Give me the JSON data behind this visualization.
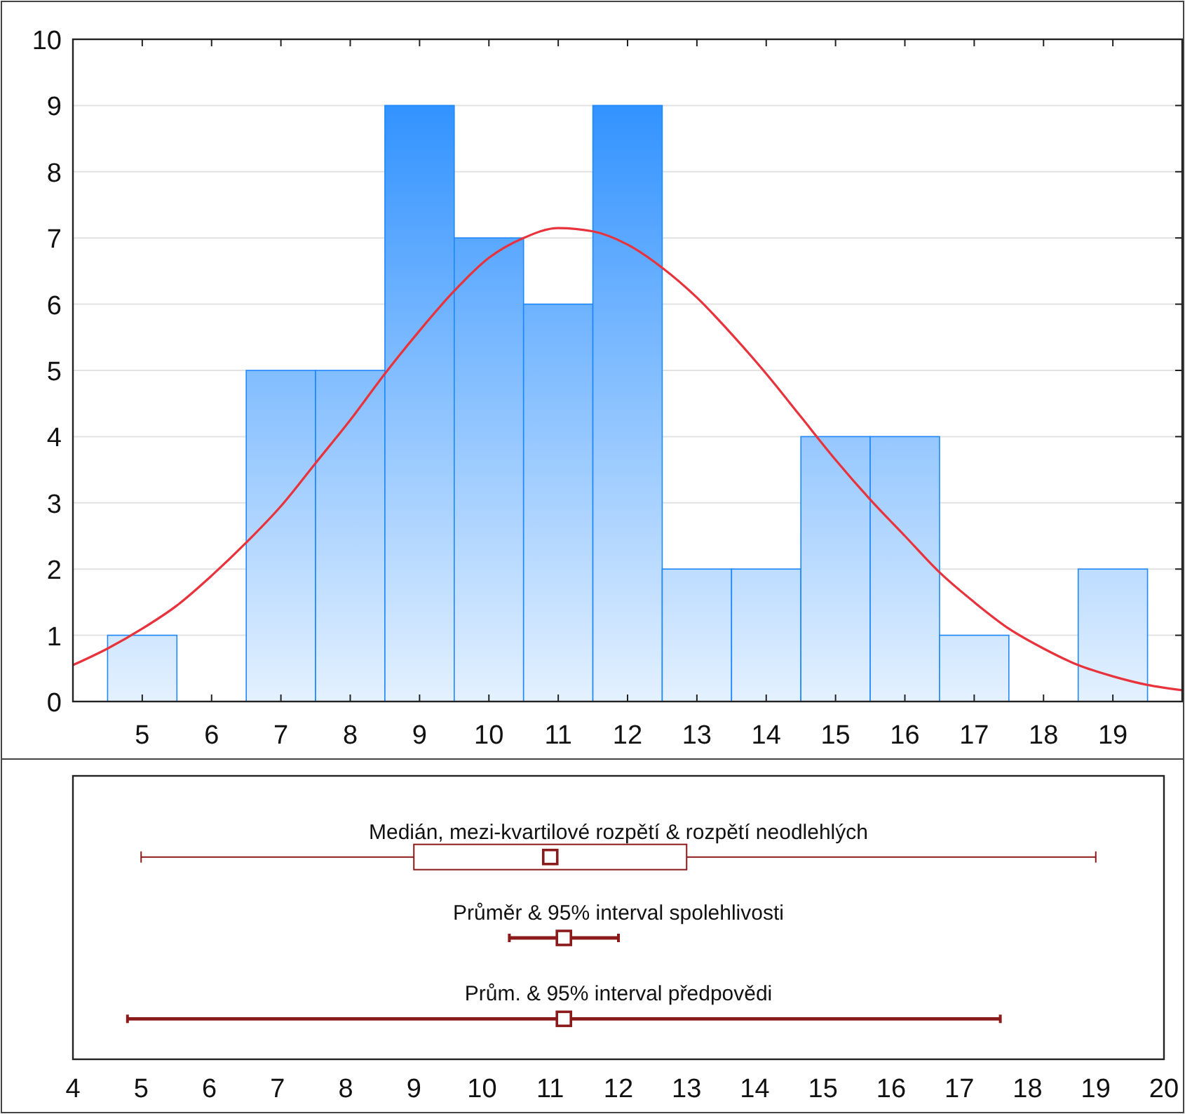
{
  "chart_data": [
    {
      "type": "histogram",
      "bins": [
        4.5,
        5.5,
        6.5,
        7.5,
        8.5,
        9.5,
        10.5,
        11.5,
        12.5,
        13.5,
        14.5,
        15.5,
        16.5,
        17.5,
        18.5,
        19.5
      ],
      "series": [
        {
          "type": "histogram",
          "color": "#1e88ff",
          "values": [
            1,
            0,
            5,
            5,
            9,
            7,
            6,
            9,
            2,
            2,
            4,
            4,
            1,
            0,
            2
          ]
        },
        {
          "type": "line",
          "color": "#e8323c",
          "x": [
            4,
            4.5,
            5,
            5.5,
            6,
            6.5,
            7,
            7.5,
            8,
            8.5,
            9,
            9.5,
            10,
            10.5,
            11,
            11.5,
            12,
            12.5,
            13,
            13.5,
            14,
            14.5,
            15,
            15.5,
            16,
            16.5,
            17,
            17.5,
            18,
            18.5,
            19,
            19.5,
            20
          ],
          "values": [
            0.55,
            0.8,
            1.1,
            1.45,
            1.9,
            2.4,
            2.95,
            3.6,
            4.25,
            4.95,
            5.6,
            6.2,
            6.7,
            7.0,
            7.15,
            7.1,
            6.9,
            6.55,
            6.1,
            5.55,
            4.95,
            4.3,
            3.65,
            3.05,
            2.5,
            1.95,
            1.5,
            1.1,
            0.8,
            0.55,
            0.38,
            0.25,
            0.17
          ]
        }
      ],
      "xlim": [
        4,
        20
      ],
      "xticks": [
        5,
        6,
        7,
        8,
        9,
        10,
        11,
        12,
        13,
        14,
        15,
        16,
        17,
        18,
        19
      ],
      "ylim": [
        0,
        10
      ],
      "yticks": [
        0,
        1,
        2,
        3,
        4,
        5,
        6,
        7,
        8,
        9,
        10
      ],
      "grid": "y"
    },
    {
      "type": "box",
      "orientation": "horizontal",
      "categories": [
        "Medián, mezi-kvartilové rozpětí & rozpětí neodlehlých",
        "Průměr & 95% interval spolehlivosti",
        "Prům. & 95% interval předpovědi"
      ],
      "series": [
        {
          "type": "box",
          "color": "#8b1a1a",
          "boxes": [
            {
              "low": 5,
              "q1": 9,
              "median": 11,
              "q3": 13,
              "high": 19
            },
            null,
            null
          ]
        },
        {
          "type": "scatter",
          "color": "#8b1a1a",
          "values": [
            null,
            11.2,
            11.2
          ],
          "errors": [
            null,
            [
              10.4,
              12.0
            ],
            [
              4.8,
              17.6
            ]
          ]
        }
      ],
      "marker": "square",
      "xlim": [
        4,
        20
      ],
      "xticks": [
        4,
        5,
        6,
        7,
        8,
        9,
        10,
        11,
        12,
        13,
        14,
        15,
        16,
        17,
        18,
        19,
        20
      ],
      "tick_labels": "x"
    }
  ]
}
